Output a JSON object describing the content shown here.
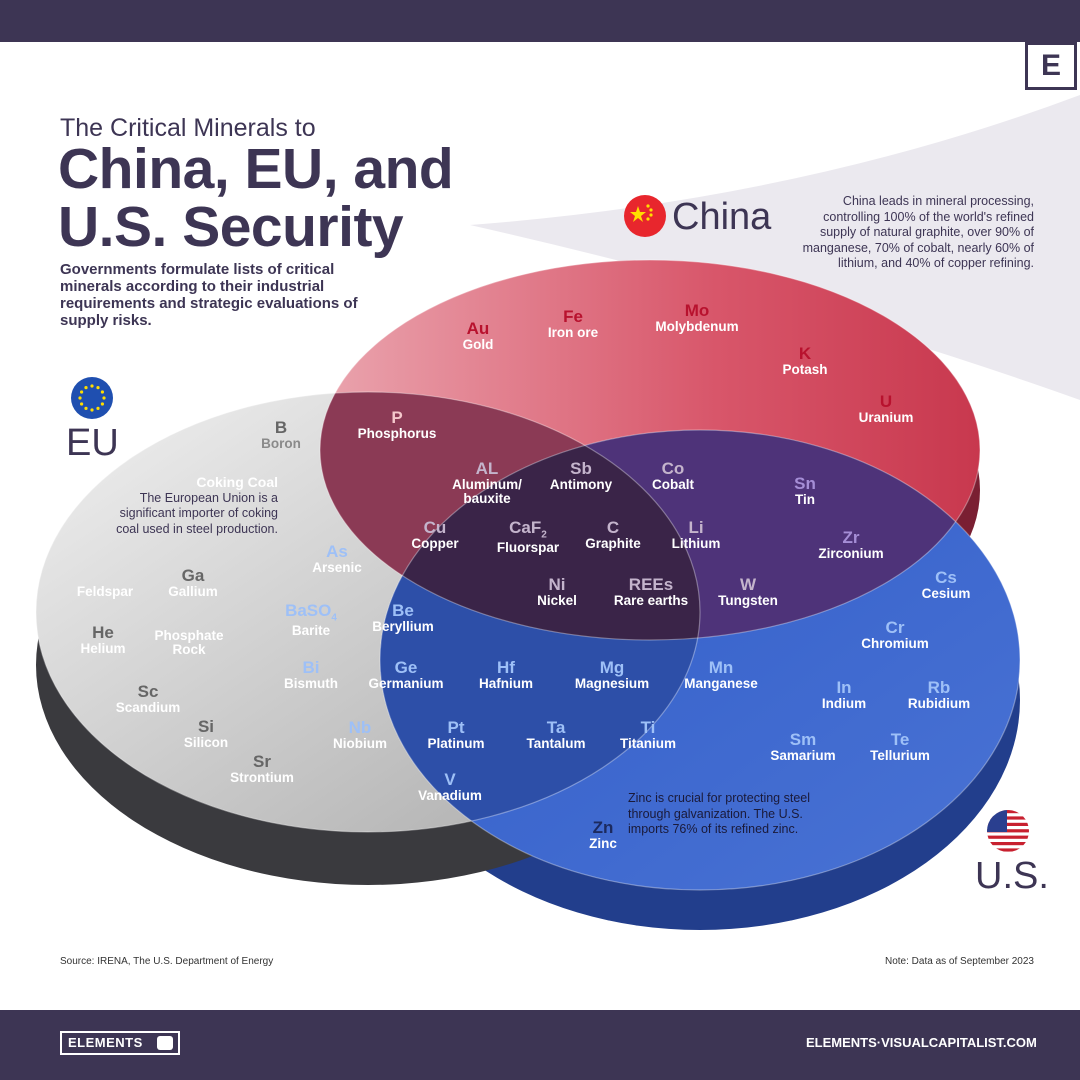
{
  "header": {
    "logo_letter": "E"
  },
  "title": {
    "small": "The Critical Minerals to",
    "big_line1": "China, EU, and",
    "big_line2": "U.S. Security"
  },
  "intro": "Governments formulate lists of critical minerals according to their industrial requirements and strategic evaluations of supply risks.",
  "regions": {
    "china": {
      "label": "China",
      "color": "#d94e5c"
    },
    "eu": {
      "label": "EU",
      "color": "#bdbdbd"
    },
    "us": {
      "label": "U.S.",
      "color": "#3d62c4"
    }
  },
  "china_note": "China leads in mineral processing, controlling 100% of the world's refined supply of natural graphite, over 90% of manganese, 70% of cobalt, nearly 60% of lithium, and 40% of copper refining.",
  "minerals": {
    "china_only": [
      {
        "sym": "Au",
        "name": "Gold"
      },
      {
        "sym": "Fe",
        "name": "Iron ore"
      },
      {
        "sym": "Mo",
        "name": "Molybdenum"
      },
      {
        "sym": "K",
        "name": "Potash"
      },
      {
        "sym": "U",
        "name": "Uranium"
      }
    ],
    "china_eu": [
      {
        "sym": "P",
        "name": "Phosphorus"
      }
    ],
    "all_three": [
      {
        "sym": "AL",
        "name": "Aluminum/",
        "name2": "bauxite"
      },
      {
        "sym": "Sb",
        "name": "Antimony"
      },
      {
        "sym": "Co",
        "name": "Cobalt"
      },
      {
        "sym": "Cu",
        "name": "Copper"
      },
      {
        "sym": "CaF",
        "sub": "2",
        "name": "Fluorspar"
      },
      {
        "sym": "C",
        "name": "Graphite"
      },
      {
        "sym": "Li",
        "name": "Lithium"
      },
      {
        "sym": "Ni",
        "name": "Nickel"
      },
      {
        "sym": "REEs",
        "name": "Rare earths"
      },
      {
        "sym": "W",
        "name": "Tungsten"
      }
    ],
    "china_us": [
      {
        "sym": "Sn",
        "name": "Tin"
      },
      {
        "sym": "Zr",
        "name": "Zirconium"
      }
    ],
    "eu_only": [
      {
        "sym": "B",
        "name": "Boron"
      },
      {
        "sym": "",
        "name": "Feldspar"
      },
      {
        "sym": "Ga",
        "name": "Gallium"
      },
      {
        "sym": "He",
        "name": "Helium"
      },
      {
        "sym": "",
        "name": "Phosphate",
        "name2": "Rock"
      },
      {
        "sym": "Sc",
        "name": "Scandium"
      },
      {
        "sym": "Si",
        "name": "Silicon"
      },
      {
        "sym": "Sr",
        "name": "Strontium"
      }
    ],
    "eu_us": [
      {
        "sym": "As",
        "name": "Arsenic"
      },
      {
        "sym": "BaSO",
        "sub": "4",
        "name": "Barite"
      },
      {
        "sym": "Be",
        "name": "Beryllium"
      },
      {
        "sym": "Bi",
        "name": "Bismuth"
      },
      {
        "sym": "Ge",
        "name": "Germanium"
      },
      {
        "sym": "Hf",
        "name": "Hafnium"
      },
      {
        "sym": "Mg",
        "name": "Magnesium"
      },
      {
        "sym": "Mn",
        "name": "Manganese"
      },
      {
        "sym": "Nb",
        "name": "Niobium"
      },
      {
        "sym": "Pt",
        "name": "Platinum"
      },
      {
        "sym": "Ta",
        "name": "Tantalum"
      },
      {
        "sym": "Ti",
        "name": "Titanium"
      },
      {
        "sym": "V",
        "name": "Vanadium"
      }
    ],
    "us_only": [
      {
        "sym": "Cs",
        "name": "Cesium"
      },
      {
        "sym": "Cr",
        "name": "Chromium"
      },
      {
        "sym": "In",
        "name": "Indium"
      },
      {
        "sym": "Rb",
        "name": "Rubidium"
      },
      {
        "sym": "Sm",
        "name": "Samarium"
      },
      {
        "sym": "Te",
        "name": "Tellurium"
      },
      {
        "sym": "Zn",
        "name": "Zinc"
      }
    ]
  },
  "coking": {
    "title": "Coking Coal",
    "text": "The European Union is a significant importer of coking coal used in steel production."
  },
  "zinc_note": "Zinc is crucial for protecting steel through galvanization. The U.S. imports 76% of its refined zinc.",
  "footer": {
    "source": "Source: IRENA, The U.S. Department of Energy",
    "note": "Note: Data as of September 2023",
    "brand": "ELEMENTS",
    "site": "ELEMENTS·VISUALCAPITALIST.COM"
  }
}
